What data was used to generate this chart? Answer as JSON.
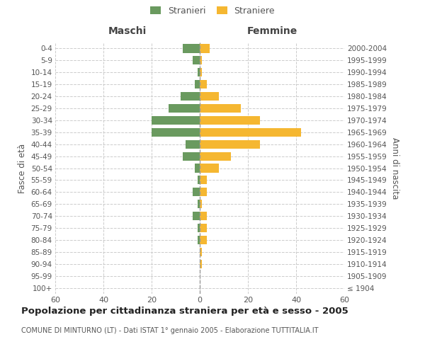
{
  "age_groups": [
    "100+",
    "95-99",
    "90-94",
    "85-89",
    "80-84",
    "75-79",
    "70-74",
    "65-69",
    "60-64",
    "55-59",
    "50-54",
    "45-49",
    "40-44",
    "35-39",
    "30-34",
    "25-29",
    "20-24",
    "15-19",
    "10-14",
    "5-9",
    "0-4"
  ],
  "birth_years": [
    "≤ 1904",
    "1905-1909",
    "1910-1914",
    "1915-1919",
    "1920-1924",
    "1925-1929",
    "1930-1934",
    "1935-1939",
    "1940-1944",
    "1945-1949",
    "1950-1954",
    "1955-1959",
    "1960-1964",
    "1965-1969",
    "1970-1974",
    "1975-1979",
    "1980-1984",
    "1985-1989",
    "1990-1994",
    "1995-1999",
    "2000-2004"
  ],
  "maschi_stranieri": [
    0,
    0,
    0,
    0,
    1,
    1,
    3,
    1,
    3,
    1,
    2,
    7,
    6,
    20,
    20,
    13,
    8,
    2,
    1,
    3,
    7
  ],
  "femmine_straniere": [
    0,
    0,
    1,
    1,
    3,
    3,
    3,
    1,
    3,
    3,
    8,
    13,
    25,
    42,
    25,
    17,
    8,
    3,
    1,
    1,
    4
  ],
  "male_color": "#6a9a5f",
  "female_color": "#f5b731",
  "title": "Popolazione per cittadinanza straniera per età e sesso - 2005",
  "subtitle": "COMUNE DI MINTURNO (LT) - Dati ISTAT 1° gennaio 2005 - Elaborazione TUTTITALIA.IT",
  "header_left": "Maschi",
  "header_right": "Femmine",
  "ylabel_left": "Fasce di età",
  "ylabel_right": "Anni di nascita",
  "xlim": 60,
  "legend_stranieri": "Stranieri",
  "legend_straniere": "Straniere",
  "bg_color": "#ffffff",
  "grid_color": "#cccccc",
  "tick_label_color": "#555555",
  "header_color": "#444444"
}
